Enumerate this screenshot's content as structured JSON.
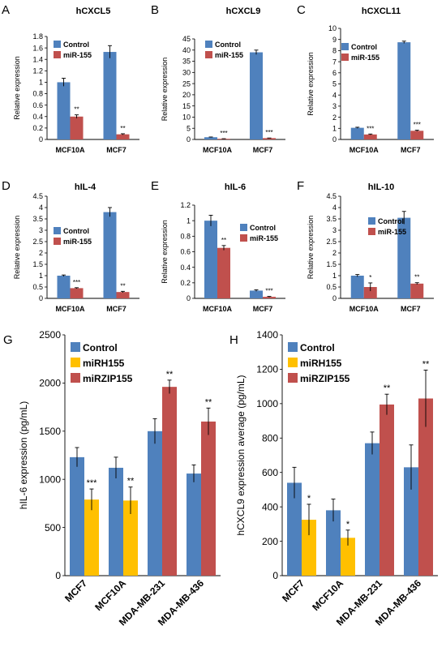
{
  "colors": {
    "control": "#4F81BD",
    "mir155": "#C0504D",
    "mirh155": "#FFC000",
    "axis": "#000000"
  },
  "chart_data": [
    {
      "id": "A",
      "letter": "A",
      "type": "bar",
      "title": "hCXCL5",
      "ylabel": "Relative expression",
      "ylim": [
        0,
        1.8
      ],
      "yticks": [
        "0",
        "0.2",
        "0.4",
        "0.6",
        "0.8",
        "1",
        "1.2",
        "1.4",
        "1.6",
        "1.8"
      ],
      "categories": [
        "MCF10A",
        "MCF7"
      ],
      "series": [
        {
          "name": "Control",
          "color": "#4F81BD",
          "values": [
            1.0,
            1.53
          ],
          "errors": [
            0.07,
            0.11
          ],
          "sig": [
            "",
            ""
          ]
        },
        {
          "name": "miR-155",
          "color": "#C0504D",
          "values": [
            0.4,
            0.09
          ],
          "errors": [
            0.03,
            0.01
          ],
          "sig": [
            "**",
            "**"
          ]
        }
      ],
      "legend": "top-left"
    },
    {
      "id": "B",
      "letter": "B",
      "type": "bar",
      "title": "hCXCL9",
      "ylabel": "Relative expression",
      "ylim": [
        0,
        45
      ],
      "yticks": [
        "0",
        "5",
        "10",
        "15",
        "20",
        "25",
        "30",
        "35",
        "40",
        "45"
      ],
      "categories": [
        "MCF10A",
        "MCF7"
      ],
      "series": [
        {
          "name": "Control",
          "color": "#4F81BD",
          "values": [
            1.0,
            39.0
          ],
          "errors": [
            0.1,
            1.0
          ],
          "sig": [
            "",
            ""
          ]
        },
        {
          "name": "miR-155",
          "color": "#C0504D",
          "values": [
            0.3,
            0.6
          ],
          "errors": [
            0.05,
            0.05
          ],
          "sig": [
            "***",
            "***"
          ]
        }
      ],
      "legend": "top-left"
    },
    {
      "id": "C",
      "letter": "C",
      "type": "bar",
      "title": "hCXCL11",
      "ylabel": "Relative expression",
      "ylim": [
        0,
        10
      ],
      "yticks": [
        "0",
        "1",
        "2",
        "3",
        "4",
        "5",
        "6",
        "7",
        "8",
        "9",
        "10"
      ],
      "categories": [
        "MCF10A",
        "MCF7"
      ],
      "series": [
        {
          "name": "Control",
          "color": "#4F81BD",
          "values": [
            1.05,
            8.75
          ],
          "errors": [
            0.05,
            0.1
          ],
          "sig": [
            "",
            ""
          ]
        },
        {
          "name": "miR-155",
          "color": "#C0504D",
          "values": [
            0.45,
            0.78
          ],
          "errors": [
            0.04,
            0.05
          ],
          "sig": [
            "***",
            "***"
          ]
        }
      ],
      "legend": "top-left"
    },
    {
      "id": "D",
      "letter": "D",
      "type": "bar",
      "title": "hIL-4",
      "ylabel": "Relative expression",
      "ylim": [
        0,
        4.5
      ],
      "yticks": [
        "0",
        "0.5",
        "1",
        "1.5",
        "2",
        "2.5",
        "3",
        "3.5",
        "4",
        "4.5"
      ],
      "categories": [
        "MCF10A",
        "MCF7"
      ],
      "series": [
        {
          "name": "Control",
          "color": "#4F81BD",
          "values": [
            1.0,
            3.8
          ],
          "errors": [
            0.03,
            0.2
          ],
          "sig": [
            "",
            ""
          ]
        },
        {
          "name": "miR-155",
          "color": "#C0504D",
          "values": [
            0.45,
            0.28
          ],
          "errors": [
            0.02,
            0.03
          ],
          "sig": [
            "***",
            "**"
          ]
        }
      ],
      "legend": "top-left"
    },
    {
      "id": "E",
      "letter": "E",
      "type": "bar",
      "title": "hIL-6",
      "ylabel": "Relative expression",
      "ylim": [
        0,
        1.2
      ],
      "yticks": [
        "0",
        "0.2",
        "0.4",
        "0.6",
        "0.8",
        "1",
        "1.2"
      ],
      "categories": [
        "MCF10A",
        "MCF7"
      ],
      "series": [
        {
          "name": "Control",
          "color": "#4F81BD",
          "values": [
            1.0,
            0.1
          ],
          "errors": [
            0.07,
            0.01
          ],
          "sig": [
            "",
            ""
          ]
        },
        {
          "name": "miR-155",
          "color": "#C0504D",
          "values": [
            0.65,
            0.02
          ],
          "errors": [
            0.03,
            0.005
          ],
          "sig": [
            "**",
            "***"
          ]
        }
      ],
      "legend": "top-right"
    },
    {
      "id": "F",
      "letter": "F",
      "type": "bar",
      "title": "hIL-10",
      "ylabel": "Relative expression",
      "ylim": [
        0,
        4.5
      ],
      "yticks": [
        "0",
        "0.5",
        "1",
        "1.5",
        "2",
        "2.5",
        "3",
        "3.5",
        "4",
        "4.5"
      ],
      "categories": [
        "MCF10A",
        "MCF7"
      ],
      "series": [
        {
          "name": "Control",
          "color": "#4F81BD",
          "values": [
            1.0,
            3.55
          ],
          "errors": [
            0.05,
            0.28
          ],
          "sig": [
            "",
            ""
          ]
        },
        {
          "name": "miR-155",
          "color": "#C0504D",
          "values": [
            0.5,
            0.65
          ],
          "errors": [
            0.18,
            0.04
          ],
          "sig": [
            "*",
            "**"
          ]
        }
      ],
      "legend": "top-left"
    },
    {
      "id": "G",
      "letter": "G",
      "type": "bar",
      "title": "",
      "ylabel": "hIL-6 expression  (pg/mL)",
      "ylim": [
        0,
        2500
      ],
      "yticks": [
        "0",
        "500",
        "1000",
        "1500",
        "2000",
        "2500"
      ],
      "categories": [
        "MCF7",
        "MCF10A",
        "MDA-MB-231",
        "MDA-MB-436"
      ],
      "series": [
        {
          "name": "Control",
          "color": "#4F81BD",
          "values": [
            1230,
            1120,
            1500,
            1060
          ],
          "errors": [
            100,
            110,
            130,
            90
          ],
          "sig": [
            "",
            "",
            "",
            ""
          ]
        },
        {
          "name": "miRH155",
          "color": "#FFC000",
          "values": [
            790,
            780,
            null,
            null
          ],
          "errors": [
            110,
            140,
            null,
            null
          ],
          "sig": [
            "***",
            "**",
            "",
            ""
          ]
        },
        {
          "name": "miRZIP155",
          "color": "#C0504D",
          "values": [
            null,
            null,
            1960,
            1600
          ],
          "errors": [
            null,
            null,
            70,
            140
          ],
          "sig": [
            "",
            "",
            "**",
            "**"
          ]
        }
      ],
      "legend": "top-left"
    },
    {
      "id": "H",
      "letter": "H",
      "type": "bar",
      "title": "",
      "ylabel": "hCXCL9 expression average  (pg/mL)",
      "ylim": [
        0,
        1400
      ],
      "yticks": [
        "0",
        "200",
        "400",
        "600",
        "800",
        "1000",
        "1200",
        "1400"
      ],
      "categories": [
        "MCF7",
        "MCF10A",
        "MDA-MB-231",
        "MDA-MB-436"
      ],
      "series": [
        {
          "name": "Control",
          "color": "#4F81BD",
          "values": [
            540,
            380,
            770,
            630
          ],
          "errors": [
            90,
            65,
            65,
            130
          ],
          "sig": [
            "",
            "",
            "",
            ""
          ]
        },
        {
          "name": "miRH155",
          "color": "#FFC000",
          "values": [
            325,
            220,
            null,
            null
          ],
          "errors": [
            90,
            45,
            null,
            null
          ],
          "sig": [
            "*",
            "*",
            "",
            ""
          ]
        },
        {
          "name": "miRZIP155",
          "color": "#C0504D",
          "values": [
            null,
            null,
            995,
            1030
          ],
          "errors": [
            null,
            null,
            60,
            165
          ],
          "sig": [
            "",
            "",
            "**",
            "**"
          ]
        }
      ],
      "legend": "top-left"
    }
  ]
}
